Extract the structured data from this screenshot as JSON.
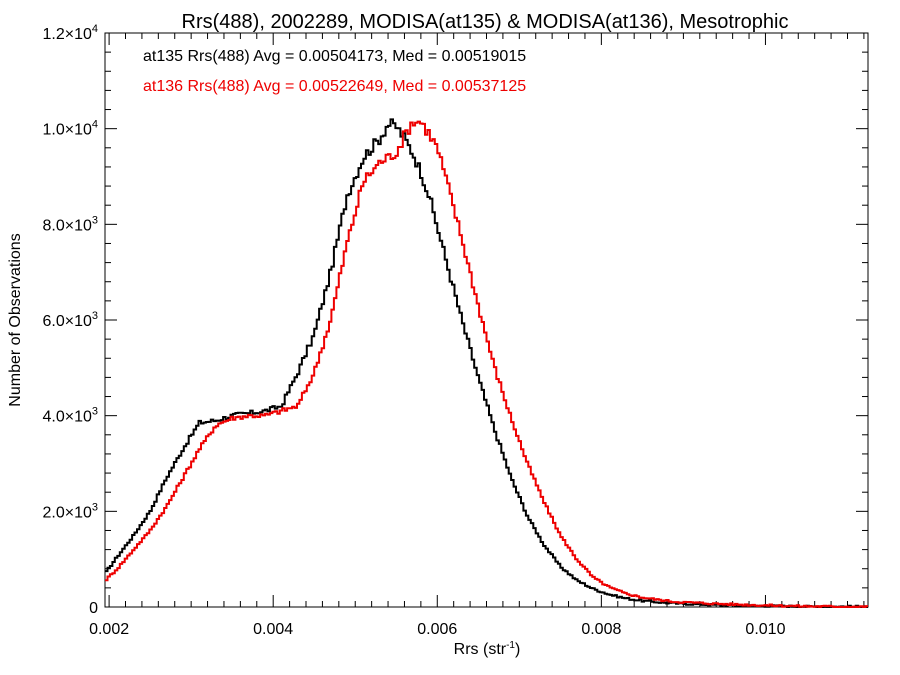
{
  "chart_data": {
    "type": "line",
    "title": "Rrs(488), 2002289, MODISA(at135) & MODISA(at136), Mesotrophic",
    "xlabel": "Rrs (str",
    "xlabel_sup": "-1",
    "xlabel_close": ")",
    "ylabel": "Number of Observations",
    "xlim": [
      0.00195,
      0.01125
    ],
    "ylim": [
      0,
      12000
    ],
    "x_ticks": [
      {
        "value": 0.002,
        "label": "0.002"
      },
      {
        "value": 0.004,
        "label": "0.004"
      },
      {
        "value": 0.006,
        "label": "0.006"
      },
      {
        "value": 0.008,
        "label": "0.008"
      },
      {
        "value": 0.01,
        "label": "0.010"
      }
    ],
    "y_ticks": [
      {
        "value": 0,
        "mant": "0",
        "exp": ""
      },
      {
        "value": 2000,
        "mant": "2.0×10",
        "exp": "3"
      },
      {
        "value": 4000,
        "mant": "4.0×10",
        "exp": "3"
      },
      {
        "value": 6000,
        "mant": "6.0×10",
        "exp": "3"
      },
      {
        "value": 8000,
        "mant": "8.0×10",
        "exp": "3"
      },
      {
        "value": 10000,
        "mant": "1.0×10",
        "exp": "4"
      },
      {
        "value": 12000,
        "mant": "1.2×10",
        "exp": "4"
      }
    ],
    "series": [
      {
        "name": "at135",
        "color": "#000000",
        "label": "at135 Rrs(488) Avg = 0.00504173, Med = 0.00519015",
        "x": [
          0.00195,
          0.0021,
          0.0023,
          0.0025,
          0.0027,
          0.0029,
          0.0031,
          0.0033,
          0.0035,
          0.0037,
          0.0039,
          0.0041,
          0.0043,
          0.0045,
          0.0047,
          0.0049,
          0.0051,
          0.0053,
          0.0054,
          0.0055,
          0.0056,
          0.0057,
          0.0058,
          0.0059,
          0.0061,
          0.0063,
          0.0065,
          0.0067,
          0.0069,
          0.0071,
          0.0073,
          0.0075,
          0.0077,
          0.0079,
          0.0081,
          0.0083,
          0.0085,
          0.0087,
          0.0089,
          0.0093,
          0.0097,
          0.0101,
          0.0105,
          0.01125
        ],
        "y": [
          700,
          1050,
          1500,
          2000,
          2700,
          3300,
          3850,
          3900,
          4000,
          4050,
          4100,
          4200,
          4900,
          5700,
          7000,
          8600,
          9400,
          9800,
          10100,
          10050,
          9800,
          9500,
          9100,
          8600,
          7300,
          6000,
          4800,
          3700,
          2700,
          1900,
          1300,
          850,
          560,
          380,
          260,
          180,
          130,
          100,
          75,
          50,
          30,
          20,
          10,
          5
        ]
      },
      {
        "name": "at136",
        "color": "#ee0000",
        "label": "at136 Rrs(488) Avg = 0.00522649, Med = 0.00537125",
        "x": [
          0.00195,
          0.0021,
          0.0023,
          0.0025,
          0.0027,
          0.0029,
          0.0031,
          0.0033,
          0.0035,
          0.0037,
          0.0039,
          0.0041,
          0.0043,
          0.0045,
          0.0047,
          0.0049,
          0.0051,
          0.0053,
          0.0055,
          0.0056,
          0.0057,
          0.0058,
          0.0059,
          0.006,
          0.0061,
          0.0063,
          0.0065,
          0.0067,
          0.0069,
          0.0071,
          0.0073,
          0.0075,
          0.0077,
          0.0079,
          0.0081,
          0.0083,
          0.0085,
          0.0087,
          0.0089,
          0.0093,
          0.0097,
          0.0101,
          0.0105,
          0.01125
        ],
        "y": [
          550,
          800,
          1200,
          1600,
          2100,
          2700,
          3300,
          3800,
          3950,
          4000,
          4000,
          4100,
          4200,
          4900,
          6000,
          7600,
          8900,
          9300,
          9500,
          9850,
          10150,
          10150,
          9900,
          9600,
          9000,
          7700,
          6300,
          5000,
          3950,
          3000,
          2200,
          1500,
          1000,
          620,
          410,
          280,
          200,
          150,
          110,
          75,
          50,
          30,
          15,
          5
        ]
      }
    ]
  }
}
